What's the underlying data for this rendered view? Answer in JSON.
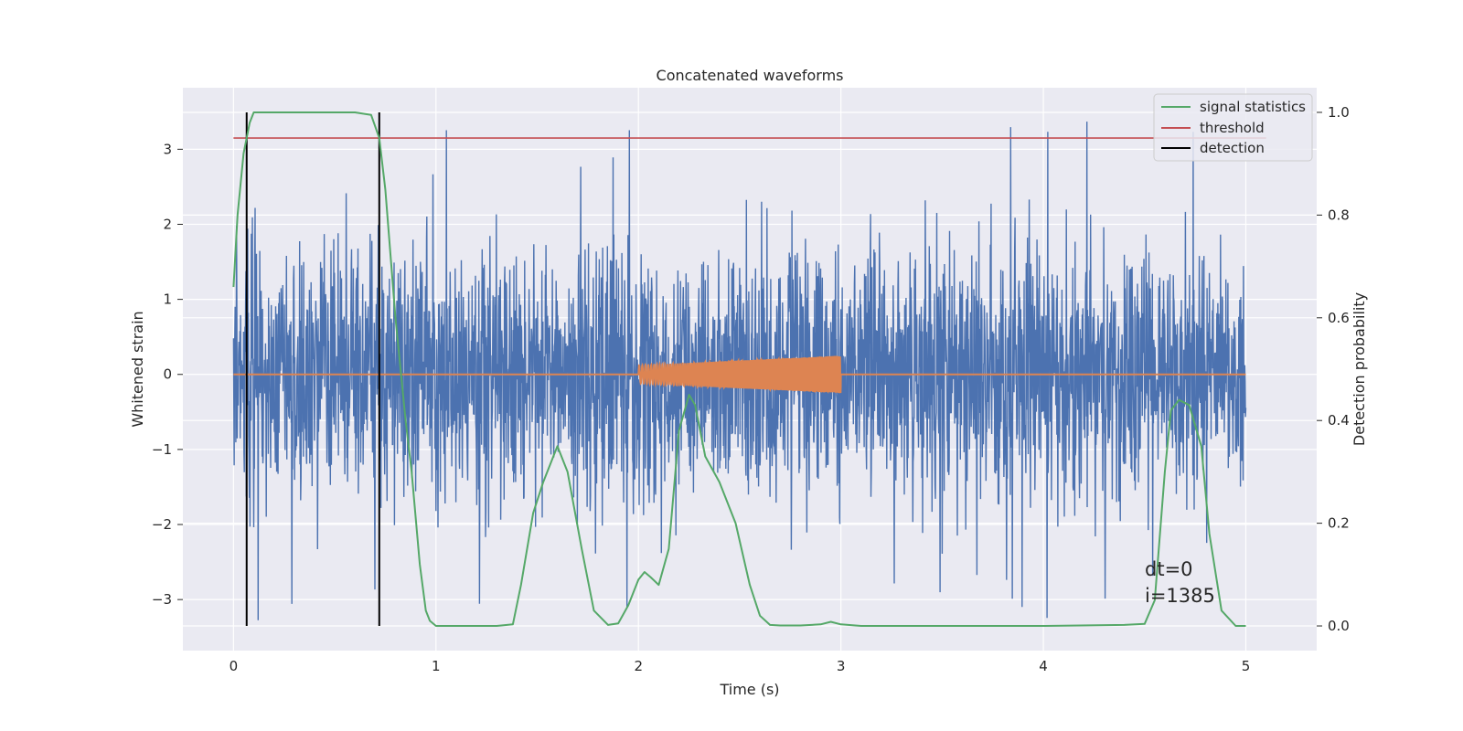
{
  "chart_data": {
    "type": "line",
    "title": "Concatenated waveforms",
    "xlabel": "Time (s)",
    "ylabel": "Whitened strain",
    "y2label": "Detection probability",
    "xlim": [
      -0.25,
      5.35
    ],
    "ylim": [
      -3.68,
      3.82
    ],
    "y2lim": [
      -0.048,
      1.048
    ],
    "x_ticks": [
      0,
      1,
      2,
      3,
      4,
      5
    ],
    "x_tick_labels": [
      "0",
      "1",
      "2",
      "3",
      "4",
      "5"
    ],
    "y_ticks": [
      -3,
      -2,
      -1,
      0,
      1,
      2,
      3
    ],
    "y_tick_labels": [
      "−3",
      "−2",
      "−1",
      "0",
      "1",
      "2",
      "3"
    ],
    "y2_ticks": [
      0.0,
      0.2,
      0.4,
      0.6,
      0.8,
      1.0
    ],
    "y2_tick_labels": [
      "0.0",
      "0.2",
      "0.4",
      "0.6",
      "0.8",
      "1.0"
    ],
    "grid": true,
    "legend_position": "top-right",
    "series": [
      {
        "name": "",
        "kind": "noise",
        "axis": "left",
        "color": "#4c72b0",
        "x_range": [
          0,
          5
        ],
        "typical_amplitude": 1.2,
        "peak_amplitude": 3.45
      },
      {
        "name": "",
        "kind": "chirp",
        "axis": "left",
        "color": "#dd8452",
        "x_range": [
          0,
          5
        ],
        "active_range": [
          2.0,
          3.0
        ],
        "amplitude_start": 0.12,
        "amplitude_end": 0.25
      },
      {
        "name": "signal statistics",
        "axis": "right",
        "color": "#55a868",
        "x": [
          0.0,
          0.02,
          0.05,
          0.08,
          0.1,
          0.15,
          0.2,
          0.4,
          0.6,
          0.68,
          0.72,
          0.75,
          0.8,
          0.85,
          0.88,
          0.92,
          0.95,
          0.97,
          1.0,
          1.3,
          1.38,
          1.42,
          1.48,
          1.53,
          1.6,
          1.65,
          1.72,
          1.78,
          1.85,
          1.9,
          1.95,
          2.0,
          2.03,
          2.06,
          2.1,
          2.15,
          2.2,
          2.25,
          2.28,
          2.33,
          2.4,
          2.48,
          2.55,
          2.6,
          2.65,
          2.7,
          2.8,
          2.9,
          2.95,
          3.0,
          3.1,
          3.5,
          4.0,
          4.4,
          4.5,
          4.55,
          4.6,
          4.63,
          4.67,
          4.72,
          4.78,
          4.82,
          4.88,
          4.95,
          5.0
        ],
        "y": [
          0.66,
          0.8,
          0.92,
          0.98,
          1.0,
          1.0,
          1.0,
          1.0,
          1.0,
          0.995,
          0.95,
          0.85,
          0.6,
          0.4,
          0.3,
          0.12,
          0.03,
          0.01,
          0.0,
          0.0,
          0.003,
          0.08,
          0.22,
          0.28,
          0.35,
          0.3,
          0.15,
          0.03,
          0.002,
          0.005,
          0.04,
          0.09,
          0.105,
          0.095,
          0.08,
          0.15,
          0.38,
          0.45,
          0.43,
          0.33,
          0.28,
          0.2,
          0.08,
          0.02,
          0.002,
          0.001,
          0.001,
          0.003,
          0.008,
          0.003,
          0.0,
          0.0,
          0.0,
          0.002,
          0.004,
          0.05,
          0.3,
          0.42,
          0.44,
          0.43,
          0.35,
          0.18,
          0.03,
          0.0,
          0.0
        ]
      },
      {
        "name": "threshold",
        "axis": "right",
        "color": "#c44e52",
        "x": [
          0,
          5.1
        ],
        "y": [
          0.95,
          0.95
        ]
      },
      {
        "name": "detection",
        "axis": "right",
        "color": "#000000",
        "x_values": [
          0.065,
          0.72
        ],
        "y_range": [
          0.0,
          1.0
        ]
      }
    ],
    "annotations": [
      "dt=0",
      "i=1385"
    ]
  }
}
